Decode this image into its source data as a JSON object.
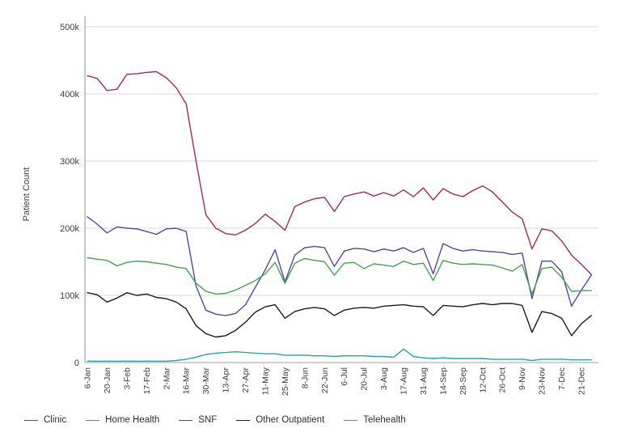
{
  "page": {
    "background": "#ffffff"
  },
  "chart_data": {
    "type": "line",
    "title": "",
    "xlabel": "",
    "ylabel": "Patient Count",
    "values_unit": "patients, values listed in thousands",
    "grid": "horizontal gridlines on, white background",
    "legend_position": "bottom-left, horizontal",
    "x": [
      "6-Jan",
      "13-Jan",
      "20-Jan",
      "27-Jan",
      "3-Feb",
      "10-Feb",
      "17-Feb",
      "24-Feb",
      "2-Mar",
      "9-Mar",
      "16-Mar",
      "23-Mar",
      "30-Mar",
      "6-Apr",
      "13-Apr",
      "20-Apr",
      "27-Apr",
      "4-May",
      "11-May",
      "18-May",
      "25-May",
      "1-Jun",
      "8-Jun",
      "15-Jun",
      "22-Jun",
      "29-Jun",
      "6-Jul",
      "13-Jul",
      "20-Jul",
      "27-Jul",
      "3-Aug",
      "10-Aug",
      "17-Aug",
      "24-Aug",
      "31-Aug",
      "7-Sep",
      "14-Sep",
      "21-Sep",
      "28-Sep",
      "5-Oct",
      "12-Oct",
      "19-Oct",
      "26-Oct",
      "2-Nov",
      "9-Nov",
      "16-Nov",
      "23-Nov",
      "30-Nov",
      "7-Dec",
      "14-Dec",
      "21-Dec",
      "28-Dec"
    ],
    "x_axis": {
      "tick_step": 2,
      "tick_labels": [
        "6-Jan",
        "20-Jan",
        "3-Feb",
        "17-Feb",
        "2-Mar",
        "16-Mar",
        "30-Mar",
        "13-Apr",
        "27-Apr",
        "11-May",
        "25-May",
        "8-Jun",
        "22-Jun",
        "6-Jul",
        "20-Jul",
        "3-Aug",
        "17-Aug",
        "31-Aug",
        "14-Sep",
        "28-Sep",
        "12-Oct",
        "26-Oct",
        "9-Nov",
        "23-Nov",
        "7-Dec",
        "21-Dec"
      ],
      "label_rotation_deg": -90
    },
    "y_axis": {
      "title": "Patient Count",
      "min": 0,
      "max": 500,
      "ticks": [
        {
          "value": 0,
          "label": "0"
        },
        {
          "value": 100,
          "label": "100k"
        },
        {
          "value": 200,
          "label": "200k"
        },
        {
          "value": 300,
          "label": "300k"
        },
        {
          "value": 400,
          "label": "400k"
        },
        {
          "value": 500,
          "label": "500k"
        }
      ]
    },
    "series": [
      {
        "name": "Clinic",
        "color": "#4e49a5",
        "values": [
          217,
          206,
          193,
          202,
          200,
          199,
          195,
          191,
          199,
          200,
          195,
          114,
          78,
          72,
          70,
          73,
          86,
          112,
          138,
          168,
          120,
          160,
          171,
          173,
          171,
          143,
          166,
          170,
          169,
          165,
          169,
          166,
          171,
          164,
          170,
          132,
          177,
          170,
          166,
          168,
          166,
          165,
          164,
          161,
          163,
          95,
          151,
          151,
          135,
          84,
          108,
          130
        ]
      },
      {
        "name": "Home Health",
        "color": "#44a152",
        "values": [
          156,
          154,
          152,
          144,
          149,
          151,
          150,
          148,
          146,
          142,
          140,
          118,
          106,
          102,
          103,
          108,
          115,
          122,
          132,
          149,
          118,
          148,
          155,
          152,
          150,
          130,
          148,
          149,
          140,
          147,
          145,
          143,
          151,
          146,
          148,
          122,
          152,
          148,
          146,
          147,
          146,
          145,
          141,
          136,
          146,
          102,
          140,
          142,
          127,
          106,
          107,
          107
        ]
      },
      {
        "name": "SNF",
        "color": "#a42b53",
        "values": [
          427,
          423,
          405,
          407,
          429,
          430,
          432,
          433,
          424,
          409,
          385,
          300,
          220,
          200,
          192,
          190,
          197,
          207,
          221,
          210,
          197,
          232,
          239,
          244,
          246,
          225,
          247,
          251,
          254,
          248,
          253,
          248,
          257,
          247,
          260,
          242,
          259,
          251,
          247,
          256,
          263,
          254,
          239,
          224,
          214,
          169,
          199,
          196,
          181,
          160,
          146,
          131
        ]
      },
      {
        "name": "Other Outpatient",
        "color": "#1c1c1c",
        "values": [
          104,
          101,
          90,
          96,
          104,
          100,
          102,
          97,
          95,
          90,
          80,
          55,
          43,
          38,
          40,
          48,
          60,
          75,
          83,
          86,
          66,
          76,
          80,
          82,
          80,
          70,
          78,
          81,
          82,
          81,
          84,
          85,
          86,
          84,
          83,
          70,
          85,
          84,
          83,
          86,
          88,
          86,
          88,
          88,
          85,
          45,
          76,
          73,
          66,
          40,
          58,
          70
        ]
      },
      {
        "name": "Telehealth",
        "color": "#2aa0a8",
        "values": [
          2,
          2,
          2,
          2,
          2,
          2,
          2,
          2,
          2,
          3,
          5,
          8,
          12,
          14,
          15,
          16,
          15,
          14,
          13,
          13,
          11,
          11,
          11,
          10,
          10,
          9,
          10,
          10,
          10,
          9,
          9,
          8,
          20,
          9,
          7,
          6,
          7,
          6,
          6,
          6,
          6,
          5,
          5,
          5,
          5,
          3,
          5,
          5,
          5,
          4,
          4,
          4
        ]
      }
    ],
    "colors": {
      "gridline": "#d9d9d9",
      "axis_line": "#909090",
      "tick_text": "#3d3d3d"
    }
  }
}
